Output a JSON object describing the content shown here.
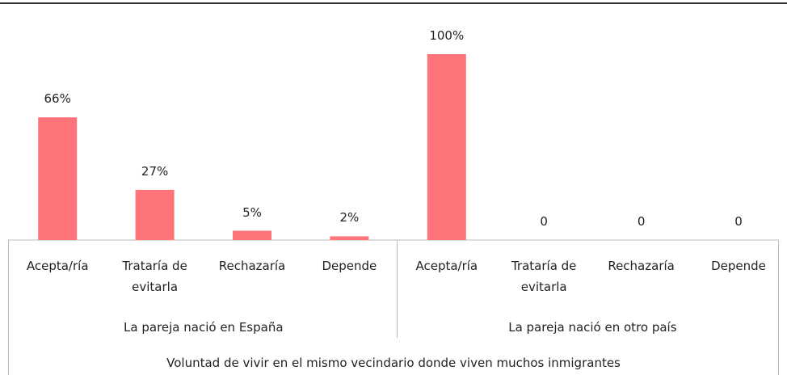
{
  "chart_data": {
    "type": "bar",
    "categories": [
      "Acepta/ría",
      "Trataría de evitarla",
      "Rechazaría",
      "Depende",
      "Acepta/ría",
      "Trataría de evitarla",
      "Rechazaría",
      "Depende"
    ],
    "groups": [
      "La pareja nació en España",
      "La pareja nació en otro país"
    ],
    "xlabel": "Voluntad de vivir en el mismo vecindario donde viven muchos inmigrantes",
    "values": [
      66,
      27,
      5,
      2,
      100,
      0,
      0,
      0
    ],
    "value_labels": [
      "66%",
      "27%",
      "5%",
      "2%",
      "100%",
      "0",
      "0",
      "0"
    ],
    "color": "#ff7479"
  }
}
